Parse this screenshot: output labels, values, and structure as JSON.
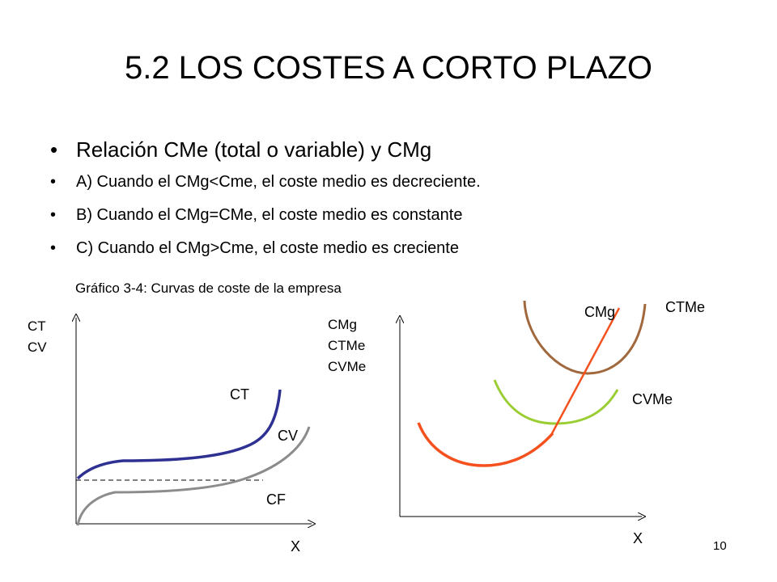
{
  "slide": {
    "title": "5.2 LOS COSTES A CORTO PLAZO",
    "bullets": [
      "Relación CMe (total o variable) y CMg",
      "A) Cuando el CMg<Cme, el coste medio es decreciente.",
      "B) Cuando el CMg=CMe, el coste medio es constante",
      "C) Cuando el CMg>Cme, el coste medio es creciente"
    ],
    "bullet_glyph": "•",
    "caption": "Gráfico 3-4: Curvas de coste de la empresa",
    "page_number": "10"
  },
  "left_graph": {
    "y_axis_label": [
      "CT",
      "CV"
    ],
    "x_axis_label": "X",
    "curves": {
      "ct": {
        "label": "CT",
        "color": "#2e3192"
      },
      "cv": {
        "label": "CV",
        "color": "#8c8c8c"
      },
      "cf": {
        "label": "CF",
        "color": "#000000"
      }
    }
  },
  "right_graph": {
    "y_axis_label": [
      "CMg",
      "CTMe",
      "CVMe"
    ],
    "x_axis_label": "X",
    "curves": {
      "cmg": {
        "label": "CMg",
        "color": "#f4511e"
      },
      "ctme": {
        "label": "CTMe",
        "color": "#a0683c"
      },
      "cvme": {
        "label": "CVMe",
        "color": "#9acd32"
      }
    }
  }
}
